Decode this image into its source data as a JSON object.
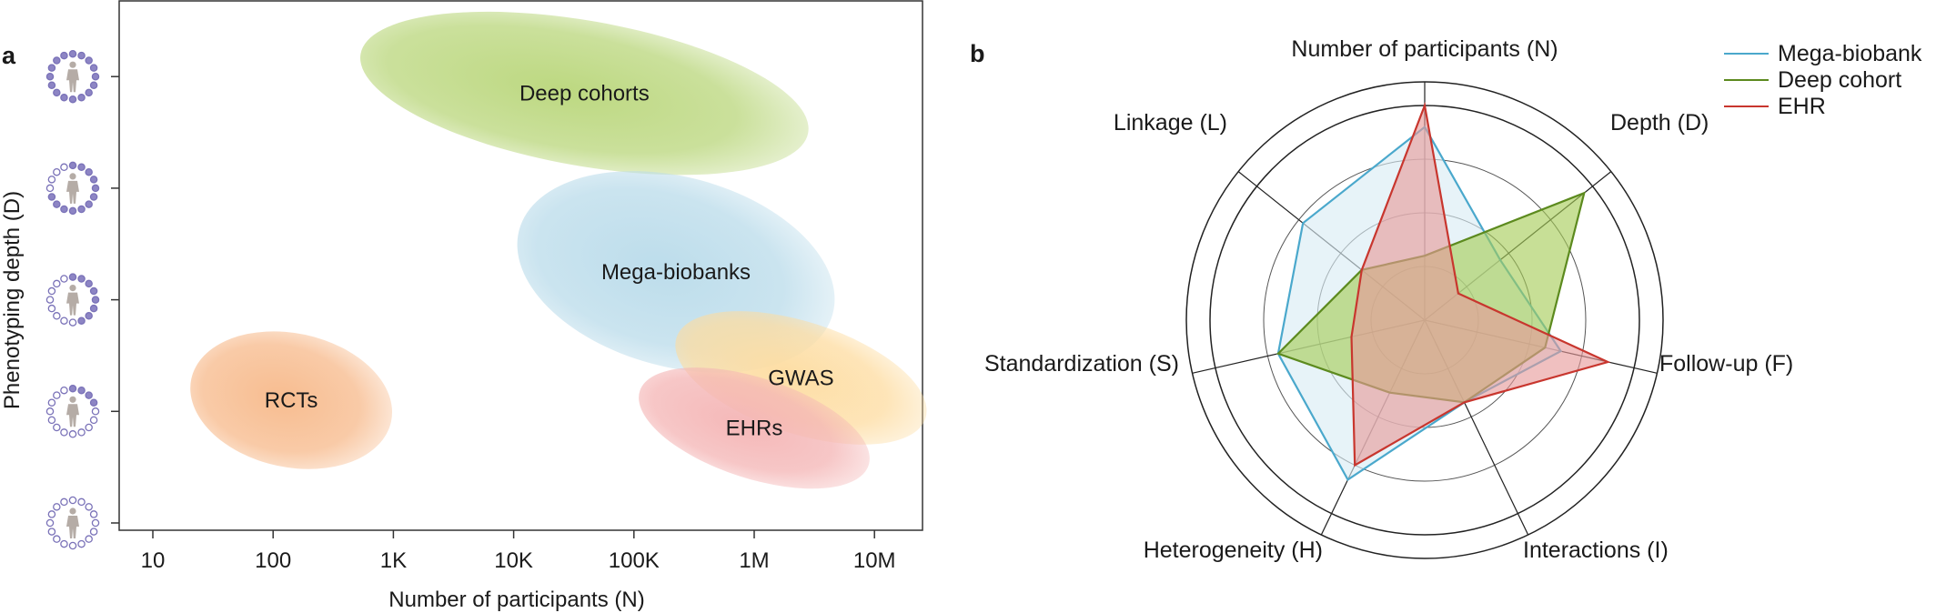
{
  "chart_data": [
    {
      "panel": "a",
      "type": "scatter",
      "xlabel": "Number of participants (N)",
      "ylabel": "Phenotyping depth (D)",
      "x_scale": "log",
      "x_ticks": [
        "10",
        "100",
        "1K",
        "10K",
        "100K",
        "1M",
        "10M"
      ],
      "y_levels": [
        1,
        2,
        3,
        4,
        5
      ],
      "y_icon": "person-in-circle-icon",
      "regions": [
        {
          "name": "Deep cohorts",
          "x_range": [
            500,
            3000000
          ],
          "y_range": [
            4.2,
            5.5
          ],
          "color": "#b9d67a"
        },
        {
          "name": "Mega-biobanks",
          "x_range": [
            10000,
            5000000
          ],
          "y_range": [
            2.4,
            4.1
          ],
          "color": "#b9dbea"
        },
        {
          "name": "GWAS",
          "x_range": [
            200000,
            30000000
          ],
          "y_range": [
            1.8,
            2.8
          ],
          "color": "#fddca0"
        },
        {
          "name": "EHRs",
          "x_range": [
            100000,
            10000000
          ],
          "y_range": [
            1.4,
            2.3
          ],
          "color": "#f4b4b4"
        },
        {
          "name": "RCTs",
          "x_range": [
            20,
            1000
          ],
          "y_range": [
            1.5,
            2.7
          ],
          "color": "#f7b98a"
        }
      ]
    },
    {
      "panel": "b",
      "type": "radar",
      "axes": [
        "Number of participants (N)",
        "Depth (D)",
        "Follow-up (F)",
        "Interactions (I)",
        "Heterogeneity (H)",
        "Standardization (S)",
        "Linkage (L)"
      ],
      "rings": 4,
      "range": [
        0,
        4
      ],
      "legend_position": "top-right",
      "series": [
        {
          "name": "Mega-biobank",
          "values": [
            3.6,
            1.8,
            2.6,
            1.7,
            3.3,
            2.8,
            2.9
          ],
          "color": "#4aa8cc",
          "fill": "#d9ecf3"
        },
        {
          "name": "Deep cohort",
          "values": [
            1.2,
            3.8,
            2.3,
            1.7,
            1.5,
            2.8,
            1.5
          ],
          "color": "#5c8a1e",
          "fill": "#a4cc55"
        },
        {
          "name": "EHR",
          "values": [
            4.0,
            0.8,
            3.5,
            1.7,
            3.0,
            1.4,
            1.5
          ],
          "color": "#c8362e",
          "fill": "#e79a99"
        }
      ]
    }
  ]
}
